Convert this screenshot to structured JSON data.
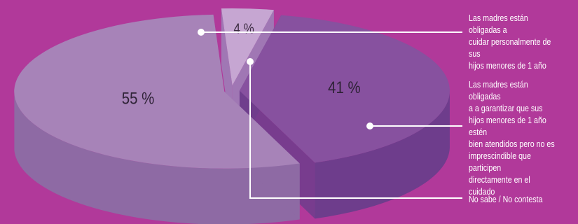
{
  "chart_data": {
    "type": "pie",
    "style": "3d-exploded",
    "unit": "%",
    "categories": [
      "Las madres están obligadas a\ncuidar personalmente de sus\nhijos menores de 1 año",
      "Las madres están obligadas\na a garantizar que sus\nhijos menores de 1 año estén\nbien atendidos pero no es\nimprescindible que participen\ndirectamente en el cuidado",
      "No sabe / No contesta"
    ],
    "values": [
      55,
      41,
      4
    ],
    "data_labels": [
      "55 %",
      "41 %",
      "4 %"
    ],
    "colors": {
      "background": "#b1399a",
      "slices": [
        "#a783b8",
        "#87519f",
        "#c6a6d2"
      ],
      "slice_sides": [
        "#8e6aa4",
        "#6e3d8c",
        "#9e82b8"
      ],
      "leader": "#ffffff"
    },
    "legend_placement": "right",
    "grid": false
  }
}
